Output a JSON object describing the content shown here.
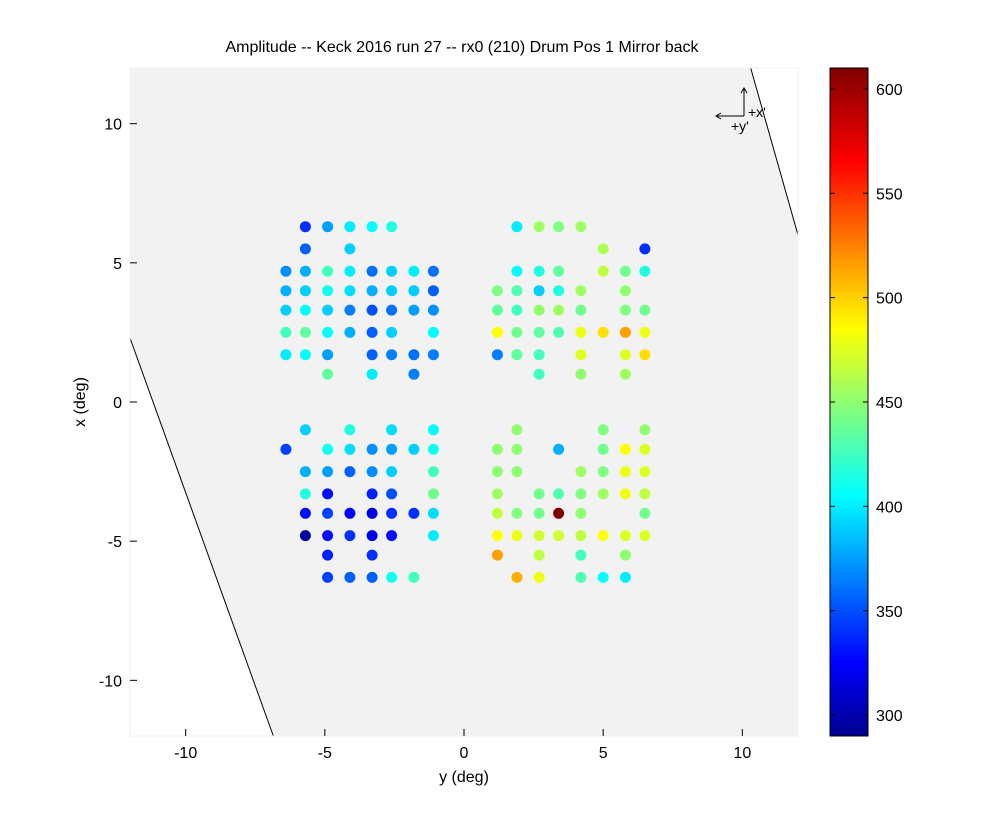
{
  "chart_data": {
    "type": "scatter",
    "title": "Amplitude -- Keck 2016 run 27 -- rx0 (210) Drum Pos 1 Mirror back",
    "xlabel": "y (deg)",
    "ylabel": "x (deg)",
    "xlim": [
      -12,
      12
    ],
    "ylim": [
      -12,
      12
    ],
    "x_ticks": [
      -10,
      -5,
      0,
      5,
      10
    ],
    "y_ticks": [
      -10,
      -5,
      0,
      5,
      10
    ],
    "colorbar": {
      "range": [
        290,
        610
      ],
      "ticks": [
        300,
        350,
        400,
        450,
        500,
        550,
        600
      ],
      "colormap": "jet"
    },
    "compass": {
      "x_label": "+x'",
      "y_label": "+y'"
    },
    "boundary_lines": [
      {
        "from": [
          10.3,
          12
        ],
        "to": [
          12,
          6
        ]
      },
      {
        "from": [
          -12,
          2.3
        ],
        "to": [
          -6.85,
          -12
        ]
      }
    ],
    "points": [
      [
        -5.7,
        6.3,
        345
      ],
      [
        -4.9,
        6.3,
        380
      ],
      [
        -4.1,
        6.3,
        405
      ],
      [
        -3.3,
        6.3,
        410
      ],
      [
        -2.6,
        6.3,
        420
      ],
      [
        -5.7,
        5.5,
        360
      ],
      [
        -4.1,
        5.5,
        395
      ],
      [
        -6.4,
        4.7,
        375
      ],
      [
        -5.7,
        4.7,
        385
      ],
      [
        -4.9,
        4.7,
        430
      ],
      [
        -4.1,
        4.7,
        405
      ],
      [
        -3.3,
        4.7,
        365
      ],
      [
        -2.6,
        4.7,
        395
      ],
      [
        -1.8,
        4.7,
        405
      ],
      [
        -1.1,
        4.7,
        365
      ],
      [
        -6.4,
        4.0,
        385
      ],
      [
        -5.7,
        4.0,
        395
      ],
      [
        -4.9,
        4.0,
        415
      ],
      [
        -4.1,
        4.0,
        400
      ],
      [
        -3.3,
        4.0,
        385
      ],
      [
        -2.6,
        4.0,
        395
      ],
      [
        -1.8,
        4.0,
        395
      ],
      [
        -1.1,
        4.0,
        360
      ],
      [
        -6.4,
        3.3,
        395
      ],
      [
        -5.7,
        3.3,
        410
      ],
      [
        -4.9,
        3.3,
        395
      ],
      [
        -4.1,
        3.3,
        370
      ],
      [
        -3.3,
        3.3,
        355
      ],
      [
        -2.6,
        3.3,
        365
      ],
      [
        -1.8,
        3.3,
        380
      ],
      [
        -1.1,
        3.3,
        375
      ],
      [
        -6.4,
        2.5,
        430
      ],
      [
        -5.7,
        2.5,
        440
      ],
      [
        -4.9,
        2.5,
        410
      ],
      [
        -4.1,
        2.5,
        385
      ],
      [
        -3.3,
        2.5,
        360
      ],
      [
        -2.6,
        2.5,
        395
      ],
      [
        -1.1,
        2.5,
        410
      ],
      [
        -6.4,
        1.7,
        405
      ],
      [
        -5.7,
        1.7,
        410
      ],
      [
        -4.9,
        1.7,
        380
      ],
      [
        -3.3,
        1.7,
        360
      ],
      [
        -2.6,
        1.7,
        370
      ],
      [
        -1.8,
        1.7,
        365
      ],
      [
        -1.1,
        1.7,
        370
      ],
      [
        -4.9,
        1.0,
        440
      ],
      [
        -3.3,
        1.0,
        405
      ],
      [
        -1.8,
        1.0,
        370
      ],
      [
        1.9,
        6.3,
        405
      ],
      [
        2.7,
        6.3,
        460
      ],
      [
        3.4,
        6.3,
        450
      ],
      [
        4.2,
        6.3,
        460
      ],
      [
        5.0,
        5.5,
        465
      ],
      [
        6.5,
        5.5,
        345
      ],
      [
        1.9,
        4.7,
        410
      ],
      [
        2.7,
        4.7,
        420
      ],
      [
        3.4,
        4.7,
        440
      ],
      [
        5.0,
        4.7,
        470
      ],
      [
        5.8,
        4.7,
        445
      ],
      [
        6.5,
        4.7,
        420
      ],
      [
        1.2,
        4.0,
        450
      ],
      [
        1.9,
        4.0,
        435
      ],
      [
        2.7,
        4.0,
        395
      ],
      [
        3.4,
        4.0,
        420
      ],
      [
        4.2,
        4.0,
        460
      ],
      [
        5.8,
        4.0,
        455
      ],
      [
        1.2,
        3.3,
        440
      ],
      [
        1.9,
        3.3,
        430
      ],
      [
        2.7,
        3.3,
        455
      ],
      [
        3.4,
        3.3,
        460
      ],
      [
        4.2,
        3.3,
        445
      ],
      [
        5.8,
        3.3,
        450
      ],
      [
        6.5,
        3.3,
        445
      ],
      [
        1.2,
        2.5,
        490
      ],
      [
        1.9,
        2.5,
        445
      ],
      [
        2.7,
        2.5,
        440
      ],
      [
        3.4,
        2.5,
        435
      ],
      [
        4.2,
        2.5,
        485
      ],
      [
        5.0,
        2.5,
        500
      ],
      [
        5.8,
        2.5,
        520
      ],
      [
        6.5,
        2.5,
        485
      ],
      [
        1.2,
        1.7,
        370
      ],
      [
        1.9,
        1.7,
        440
      ],
      [
        2.7,
        1.7,
        430
      ],
      [
        4.2,
        1.7,
        480
      ],
      [
        5.8,
        1.7,
        480
      ],
      [
        6.5,
        1.7,
        500
      ],
      [
        2.7,
        1.0,
        430
      ],
      [
        4.2,
        1.0,
        455
      ],
      [
        5.8,
        1.0,
        460
      ],
      [
        -5.7,
        -1.0,
        395
      ],
      [
        -4.1,
        -1.0,
        420
      ],
      [
        -2.6,
        -1.0,
        400
      ],
      [
        -1.1,
        -1.0,
        410
      ],
      [
        -6.4,
        -1.7,
        350
      ],
      [
        -4.9,
        -1.7,
        415
      ],
      [
        -4.1,
        -1.7,
        400
      ],
      [
        -3.3,
        -1.7,
        375
      ],
      [
        -2.6,
        -1.7,
        380
      ],
      [
        -1.8,
        -1.7,
        395
      ],
      [
        -1.1,
        -1.7,
        415
      ],
      [
        -5.7,
        -2.5,
        385
      ],
      [
        -4.9,
        -2.5,
        380
      ],
      [
        -4.1,
        -2.5,
        360
      ],
      [
        -3.3,
        -2.5,
        375
      ],
      [
        -2.6,
        -2.5,
        395
      ],
      [
        -1.1,
        -2.5,
        430
      ],
      [
        -5.7,
        -3.3,
        420
      ],
      [
        -4.9,
        -3.3,
        335
      ],
      [
        -3.3,
        -3.3,
        340
      ],
      [
        -2.6,
        -3.3,
        355
      ],
      [
        -1.1,
        -3.3,
        445
      ],
      [
        -5.7,
        -4.0,
        335
      ],
      [
        -4.9,
        -4.0,
        350
      ],
      [
        -4.1,
        -4.0,
        330
      ],
      [
        -3.3,
        -4.0,
        320
      ],
      [
        -2.6,
        -4.0,
        345
      ],
      [
        -1.8,
        -4.0,
        345
      ],
      [
        -1.1,
        -4.0,
        400
      ],
      [
        -5.7,
        -4.8,
        300
      ],
      [
        -4.9,
        -4.8,
        335
      ],
      [
        -4.1,
        -4.8,
        345
      ],
      [
        -3.3,
        -4.8,
        325
      ],
      [
        -2.6,
        -4.8,
        335
      ],
      [
        -1.1,
        -4.8,
        405
      ],
      [
        -4.9,
        -5.5,
        340
      ],
      [
        -3.3,
        -5.5,
        345
      ],
      [
        -4.9,
        -6.3,
        350
      ],
      [
        -4.1,
        -6.3,
        360
      ],
      [
        -3.3,
        -6.3,
        360
      ],
      [
        -2.6,
        -6.3,
        415
      ],
      [
        -1.8,
        -6.3,
        430
      ],
      [
        1.9,
        -1.0,
        455
      ],
      [
        5.0,
        -1.0,
        450
      ],
      [
        6.5,
        -1.0,
        455
      ],
      [
        1.2,
        -1.7,
        455
      ],
      [
        1.9,
        -1.7,
        455
      ],
      [
        3.4,
        -1.7,
        385
      ],
      [
        5.0,
        -1.7,
        445
      ],
      [
        5.8,
        -1.7,
        490
      ],
      [
        6.5,
        -1.7,
        480
      ],
      [
        1.2,
        -2.5,
        455
      ],
      [
        1.9,
        -2.5,
        455
      ],
      [
        4.2,
        -2.5,
        460
      ],
      [
        5.0,
        -2.5,
        450
      ],
      [
        5.8,
        -2.5,
        485
      ],
      [
        6.5,
        -2.5,
        480
      ],
      [
        1.2,
        -3.3,
        460
      ],
      [
        2.7,
        -3.3,
        445
      ],
      [
        3.4,
        -3.3,
        435
      ],
      [
        4.2,
        -3.3,
        450
      ],
      [
        5.0,
        -3.3,
        460
      ],
      [
        5.8,
        -3.3,
        485
      ],
      [
        6.5,
        -3.3,
        470
      ],
      [
        1.2,
        -4.0,
        470
      ],
      [
        1.9,
        -4.0,
        450
      ],
      [
        2.7,
        -4.0,
        445
      ],
      [
        3.4,
        -4.0,
        610
      ],
      [
        4.2,
        -4.0,
        455
      ],
      [
        6.5,
        -4.0,
        445
      ],
      [
        1.2,
        -4.8,
        490
      ],
      [
        1.9,
        -4.8,
        485
      ],
      [
        2.7,
        -4.8,
        475
      ],
      [
        3.4,
        -4.8,
        475
      ],
      [
        4.2,
        -4.8,
        470
      ],
      [
        5.0,
        -4.8,
        490
      ],
      [
        5.8,
        -4.8,
        480
      ],
      [
        6.5,
        -4.8,
        480
      ],
      [
        1.2,
        -5.5,
        520
      ],
      [
        2.7,
        -5.5,
        470
      ],
      [
        4.2,
        -5.5,
        430
      ],
      [
        5.8,
        -5.5,
        455
      ],
      [
        1.9,
        -6.3,
        515
      ],
      [
        2.7,
        -6.3,
        485
      ],
      [
        4.2,
        -6.3,
        435
      ],
      [
        5.0,
        -6.3,
        410
      ],
      [
        5.8,
        -6.3,
        405
      ]
    ]
  }
}
